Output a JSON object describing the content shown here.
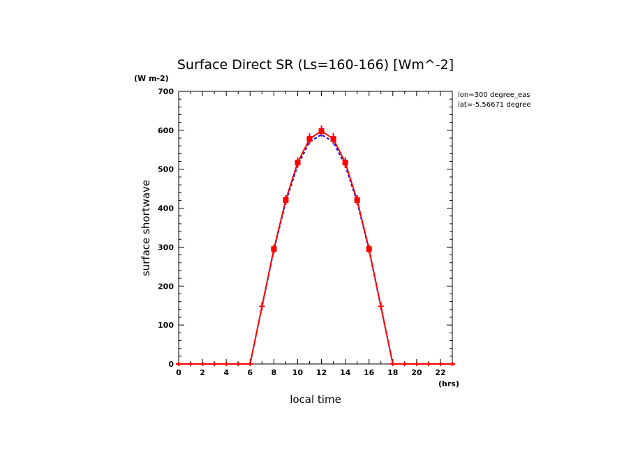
{
  "chart_data": {
    "type": "line",
    "title": "Surface Direct SR (Ls=160-166) [Wm^-2]",
    "ylabel": "surface shortwave",
    "yunit": "(W m-2)",
    "xlabel": "local time",
    "xunit": "(hrs)",
    "xlim": [
      0,
      23
    ],
    "ylim": [
      0,
      700
    ],
    "xticks": [
      0,
      2,
      4,
      6,
      8,
      10,
      12,
      14,
      16,
      18,
      20,
      22
    ],
    "yticks": [
      0,
      100,
      200,
      300,
      400,
      500,
      600,
      700
    ],
    "annotations": [
      "lon=300 degree_eas",
      "lat=-5.56671 degree"
    ],
    "series": [
      {
        "color": "#ff0000",
        "style": "solid-with-error-bars",
        "x": [
          0,
          1,
          2,
          3,
          4,
          5,
          6,
          7,
          8,
          9,
          10,
          11,
          12,
          13,
          14,
          15,
          16,
          17,
          18,
          19,
          20,
          21,
          22,
          23
        ],
        "values": [
          0,
          0,
          0,
          0,
          0,
          0,
          0,
          148,
          295,
          421,
          517,
          578,
          598,
          578,
          517,
          421,
          295,
          148,
          0,
          0,
          0,
          0,
          0,
          0
        ],
        "error": [
          0,
          0,
          0,
          0,
          0,
          0,
          0,
          5,
          6,
          7,
          8,
          9,
          9,
          9,
          8,
          7,
          6,
          5,
          0,
          0,
          0,
          0,
          0,
          0
        ]
      },
      {
        "color": "#0000ff",
        "style": "dashed",
        "x": [
          0,
          1,
          2,
          3,
          4,
          5,
          6,
          7,
          8,
          9,
          10,
          11,
          12,
          13,
          14,
          15,
          16,
          17,
          18,
          19,
          20,
          21,
          22,
          23
        ],
        "values": [
          0,
          0,
          0,
          0,
          0,
          0,
          0,
          146,
          292,
          416,
          510,
          570,
          589,
          570,
          510,
          416,
          292,
          146,
          0,
          0,
          0,
          0,
          0,
          0
        ]
      }
    ]
  }
}
